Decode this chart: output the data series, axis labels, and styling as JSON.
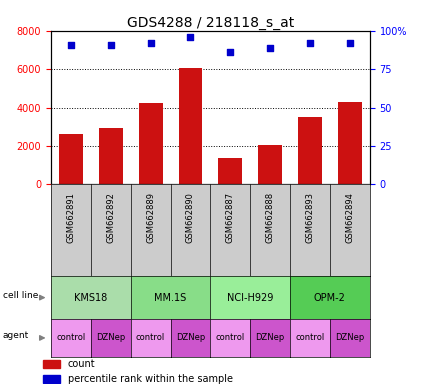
{
  "title": "GDS4288 / 218118_s_at",
  "samples": [
    "GSM662891",
    "GSM662892",
    "GSM662889",
    "GSM662890",
    "GSM662887",
    "GSM662888",
    "GSM662893",
    "GSM662894"
  ],
  "counts": [
    2600,
    2950,
    4250,
    6050,
    1350,
    2050,
    3500,
    4300
  ],
  "percentile_ranks": [
    91,
    91,
    92,
    96,
    86,
    89,
    92,
    92
  ],
  "cell_lines": [
    {
      "label": "KMS18",
      "start": 0,
      "end": 2,
      "color": "#aaddaa"
    },
    {
      "label": "MM.1S",
      "start": 2,
      "end": 4,
      "color": "#88dd88"
    },
    {
      "label": "NCI-H929",
      "start": 4,
      "end": 6,
      "color": "#99ee99"
    },
    {
      "label": "OPM-2",
      "start": 6,
      "end": 8,
      "color": "#55cc55"
    }
  ],
  "agents": [
    "control",
    "DZNep",
    "control",
    "DZNep",
    "control",
    "DZNep",
    "control",
    "DZNep"
  ],
  "control_color": "#ee99ee",
  "dznep_color": "#cc55cc",
  "bar_color": "#cc1111",
  "dot_color": "#0000cc",
  "ylim_left": [
    0,
    8000
  ],
  "ylim_right": [
    0,
    100
  ],
  "left_yticks": [
    0,
    2000,
    4000,
    6000,
    8000
  ],
  "right_yticks": [
    0,
    25,
    50,
    75,
    100
  ],
  "right_yticklabels": [
    "0",
    "25",
    "50",
    "75",
    "100%"
  ],
  "title_fontsize": 10,
  "tick_fontsize": 7,
  "sample_fontsize": 6,
  "table_fontsize": 7,
  "legend_fontsize": 7
}
